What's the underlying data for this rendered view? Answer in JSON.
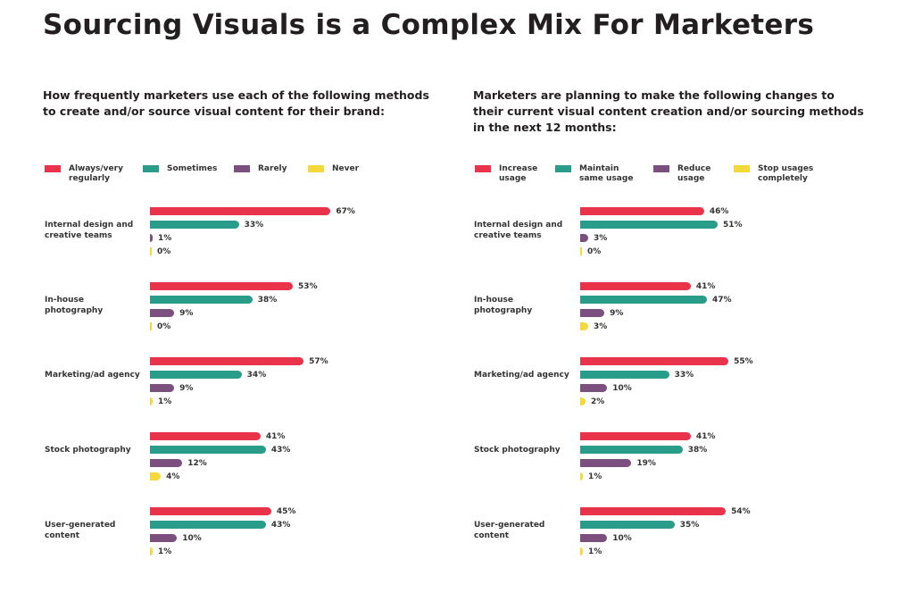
{
  "title": "Sourcing Visuals is a Complex Mix For Marketers",
  "colors": [
    "#e8334a",
    "#2a9d8a",
    "#7b4f7e",
    "#f5d93a"
  ],
  "chart_data": [
    {
      "type": "bar",
      "orientation": "horizontal",
      "title": "How frequently marketers use each of the following methods to create and/or source visual content for their brand:",
      "categories": [
        "Internal design and creative teams",
        "In-house photography",
        "Marketing/ad agency",
        "Stock photography",
        "User-generated content"
      ],
      "series": [
        {
          "name": "Always/very regularly",
          "values": [
            67,
            53,
            57,
            41,
            45
          ]
        },
        {
          "name": "Sometimes",
          "values": [
            33,
            38,
            34,
            43,
            43
          ]
        },
        {
          "name": "Rarely",
          "values": [
            1,
            9,
            9,
            12,
            10
          ]
        },
        {
          "name": "Never",
          "values": [
            0,
            0,
            1,
            4,
            1
          ]
        }
      ],
      "unit": "%"
    },
    {
      "type": "bar",
      "orientation": "horizontal",
      "title": "Marketers are planning to make the following changes to their current visual content creation and/or sourcing methods in the next 12 months:",
      "categories": [
        "Internal design and creative teams",
        "In-house photography",
        "Marketing/ad agency",
        "Stock photography",
        "User-generated content"
      ],
      "series": [
        {
          "name": "Increase usage",
          "values": [
            46,
            41,
            55,
            41,
            54
          ]
        },
        {
          "name": "Maintain same usage",
          "values": [
            51,
            47,
            33,
            38,
            35
          ]
        },
        {
          "name": "Reduce usage",
          "values": [
            3,
            9,
            10,
            19,
            10
          ]
        },
        {
          "name": "Stop usages completely",
          "values": [
            0,
            3,
            2,
            1,
            1
          ]
        }
      ],
      "unit": "%"
    }
  ]
}
